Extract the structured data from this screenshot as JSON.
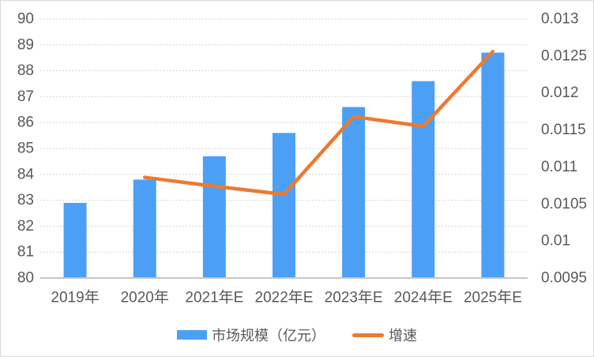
{
  "chart_data": {
    "type": "combo",
    "title": "",
    "categories": [
      "2019年",
      "2020年",
      "2021年E",
      "2022年E",
      "2023年E",
      "2024年E",
      "2025年E"
    ],
    "series": [
      {
        "name": "市场规模（亿元）",
        "type": "bar",
        "axis": "left",
        "color": "#4BA0F6",
        "values": [
          82.9,
          83.8,
          84.7,
          85.6,
          86.6,
          87.6,
          88.7
        ]
      },
      {
        "name": "增速",
        "type": "line",
        "axis": "right",
        "color": "#EC7A31",
        "values": [
          null,
          0.01086,
          0.01074,
          0.01063,
          0.01168,
          0.01155,
          0.01256
        ]
      }
    ],
    "left_axis": {
      "min": 80,
      "max": 90,
      "step": 1,
      "tick_labels": [
        "80",
        "81",
        "82",
        "83",
        "84",
        "85",
        "86",
        "87",
        "88",
        "89",
        "90"
      ]
    },
    "right_axis": {
      "min": 0.0095,
      "max": 0.013,
      "step": 0.0005,
      "tick_labels": [
        "0.0095",
        "0.01",
        "0.0105",
        "0.011",
        "0.0115",
        "0.012",
        "0.0125",
        "0.013"
      ]
    },
    "legend_position": "bottom",
    "grid": {
      "show": true,
      "style": "dotted",
      "color": "#D6D6D6"
    },
    "axis_line_color": "#C6C6C6",
    "text_color": "#595959",
    "background": "#FFFFFF",
    "border_color": "#D9D9D9"
  }
}
